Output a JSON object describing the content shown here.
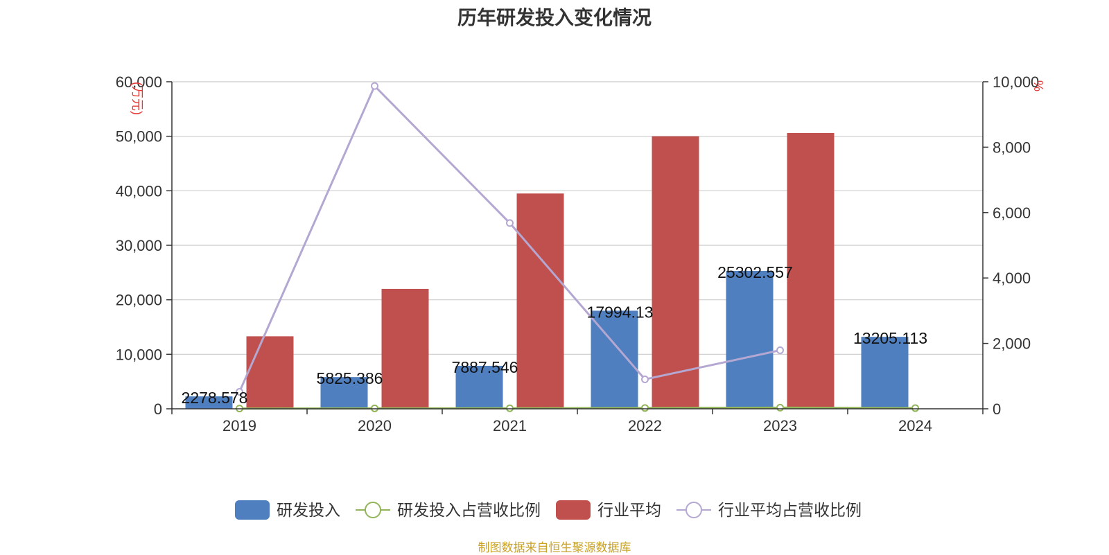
{
  "chart_data": {
    "type": "bar",
    "title": "历年研发投入变化情况",
    "categories": [
      "2019",
      "2020",
      "2021",
      "2022",
      "2023",
      "2024"
    ],
    "y_left": {
      "unit_label": "(万元)",
      "ylim": [
        0,
        60000
      ],
      "ticks": [
        "0",
        "10,000",
        "20,000",
        "30,000",
        "40,000",
        "50,000",
        "60,000"
      ]
    },
    "y_right": {
      "unit_label": "%",
      "ylim": [
        0,
        10000
      ],
      "ticks": [
        "0",
        "2,000",
        "4,000",
        "6,000",
        "8,000",
        "10,000"
      ]
    },
    "series": [
      {
        "name": "研发投入",
        "type": "bar",
        "axis": "left",
        "color": "#4f7fbf",
        "values": [
          2278.578,
          5825.386,
          7887.546,
          17994.13,
          25302.557,
          13205.113
        ],
        "labels": [
          "2278.578",
          "5825.386",
          "7887.546",
          "17994.13",
          "25302.557",
          "13205.113"
        ]
      },
      {
        "name": "研发投入占营收比例",
        "type": "line",
        "axis": "right",
        "color": "#92b55a",
        "values": [
          8.5,
          12.0,
          15.0,
          25.0,
          35.0,
          20.0
        ]
      },
      {
        "name": "行业平均",
        "type": "bar",
        "axis": "left",
        "color": "#c0504d",
        "values": [
          13300,
          22000,
          39500,
          50000,
          50600,
          null
        ]
      },
      {
        "name": "行业平均占营收比例",
        "type": "line",
        "axis": "right",
        "color": "#b4a7d1",
        "values": [
          520,
          9870,
          5680,
          900,
          1790,
          null
        ]
      }
    ],
    "grid": true,
    "legend_position": "bottom"
  },
  "source_note": "制图数据来自恒生聚源数据库"
}
